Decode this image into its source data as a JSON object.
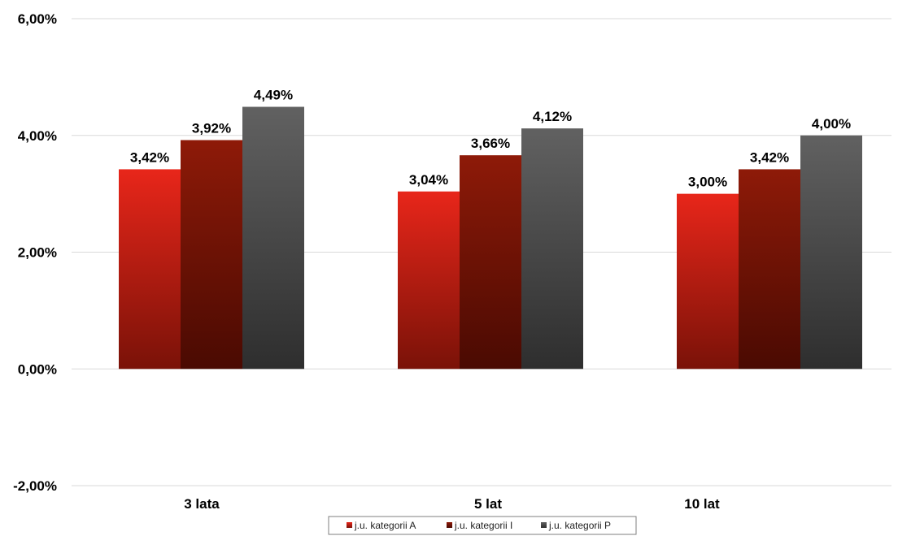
{
  "chart_data": {
    "type": "bar",
    "categories": [
      "3 lata",
      "5 lat",
      "10 lat"
    ],
    "series": [
      {
        "name": "j.u. kategorii A",
        "values": [
          3.42,
          3.04,
          3.0
        ],
        "color": "#e8261a",
        "color_dark": "#7a1208",
        "labels": [
          "3,42%",
          "3,04%",
          "3,00%"
        ]
      },
      {
        "name": "j.u. kategorii I",
        "values": [
          3.92,
          3.66,
          3.42
        ],
        "color": "#8e1a08",
        "color_dark": "#4a0a02",
        "labels": [
          "3,92%",
          "3,66%",
          "3,42%"
        ]
      },
      {
        "name": "j.u. kategorii P",
        "values": [
          4.49,
          4.12,
          4.0
        ],
        "color": "#616161",
        "color_dark": "#2e2e2e",
        "labels": [
          "4,49%",
          "4,12%",
          "4,00%"
        ]
      }
    ],
    "y_ticks": [
      {
        "value": -2,
        "label": "-2,00%"
      },
      {
        "value": 0,
        "label": "0,00%"
      },
      {
        "value": 2,
        "label": "2,00%"
      },
      {
        "value": 4,
        "label": "4,00%"
      },
      {
        "value": 6,
        "label": "6,00%"
      }
    ],
    "ylim": [
      -2,
      6
    ],
    "grid": true,
    "legend_position": "bottom",
    "title": "",
    "xlabel": "",
    "ylabel": ""
  }
}
